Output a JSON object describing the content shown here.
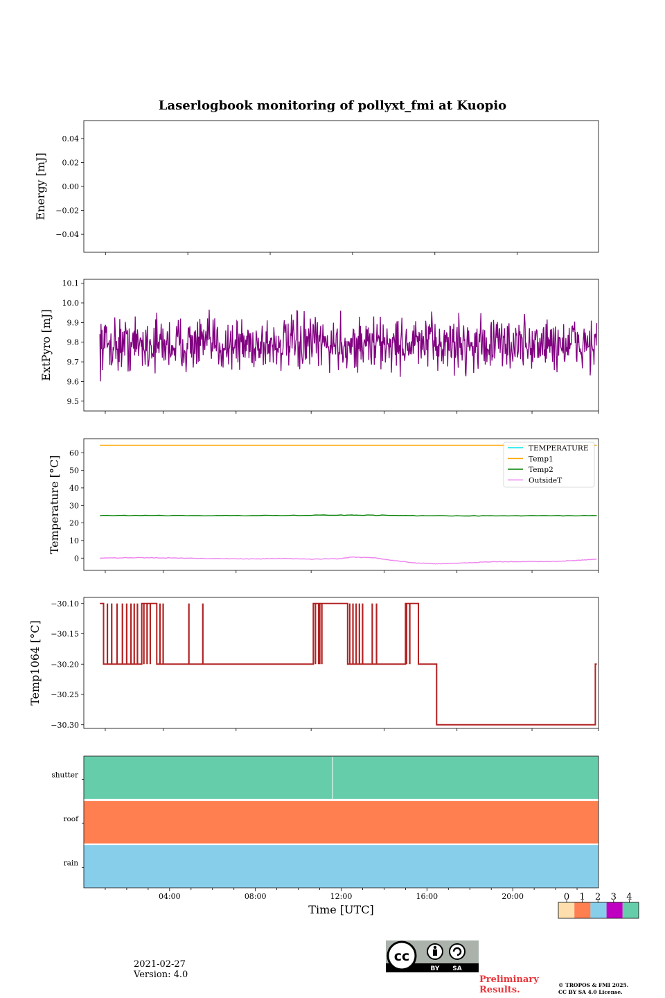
{
  "title": "Laserlogbook monitoring of pollyxt_fmi at Kuopio",
  "chart_data": [
    {
      "type": "line",
      "ylabel": "Energy [mJ]",
      "ylim": [
        -0.055,
        0.055
      ],
      "yticks": [
        0.04,
        0.02,
        0.0,
        -0.02,
        -0.04
      ],
      "ytick_labels": [
        "0.04",
        "0.02",
        "0.00",
        "−0.02",
        "−0.04"
      ],
      "series": []
    },
    {
      "type": "line",
      "ylabel": "ExtPyro [mJ]",
      "ylim": [
        9.45,
        10.12
      ],
      "yticks": [
        10.1,
        10.0,
        9.9,
        9.8,
        9.7,
        9.6,
        9.5
      ],
      "ytick_labels": [
        "10.1",
        "10.0",
        "9.9",
        "9.8",
        "9.7",
        "9.6",
        "9.5"
      ],
      "series": [
        {
          "name": "ExtPyro",
          "color": "#800080",
          "x_range_hours": [
            0.75,
            23.92
          ],
          "mean": 9.79,
          "spread": 0.09,
          "samples": 900
        }
      ]
    },
    {
      "type": "line",
      "ylabel": "Temperature [°C]",
      "ylim": [
        -7,
        68
      ],
      "yticks": [
        60,
        50,
        40,
        30,
        20,
        10,
        0
      ],
      "ytick_labels": [
        "60",
        "50",
        "40",
        "30",
        "20",
        "10",
        "0"
      ],
      "legend": [
        "TEMPERATURE",
        "Temp1",
        "Temp2",
        "OutsideT"
      ],
      "legend_position": "top-right",
      "series": [
        {
          "name": "TEMPERATURE",
          "color": "#00e5ee",
          "x": [],
          "y": []
        },
        {
          "name": "Temp1",
          "color": "#ffa500",
          "x": [
            0.75,
            23.92
          ],
          "y": [
            64.3,
            64.3
          ]
        },
        {
          "name": "Temp2",
          "color": "#008000",
          "x": [
            0.75,
            4,
            8,
            12,
            14,
            16,
            20,
            23.92
          ],
          "y": [
            24.3,
            24.2,
            24.2,
            24.5,
            24.4,
            24.1,
            24.0,
            24.2
          ]
        },
        {
          "name": "OutsideT",
          "color": "#ee82ee",
          "x": [
            0.75,
            2.5,
            4,
            6,
            8,
            9,
            10.5,
            12,
            12.5,
            13.5,
            14.5,
            15.5,
            16.5,
            17.5,
            19,
            20,
            22,
            23,
            23.92
          ],
          "y": [
            0.0,
            0.3,
            0.1,
            -0.3,
            -0.5,
            -0.2,
            -0.6,
            -0.3,
            0.6,
            0.2,
            -1.5,
            -2.8,
            -3.3,
            -2.9,
            -2.1,
            -2.0,
            -1.9,
            -1.3,
            -0.6
          ]
        }
      ]
    },
    {
      "type": "line",
      "ylabel": "Temp1064 [°C]",
      "ylim": [
        -30.306,
        -30.09
      ],
      "yticks": [
        -30.1,
        -30.15,
        -30.2,
        -30.25,
        -30.3
      ],
      "ytick_labels": [
        "−30.10",
        "−30.15",
        "−30.20",
        "−30.25",
        "−30.30"
      ],
      "series": [
        {
          "name": "Temp1064",
          "color": "#b22222",
          "levels": [
            -30.1,
            -30.2,
            -30.3
          ],
          "segments": [
            {
              "from": 0.75,
              "to": 0.92,
              "value": -30.1
            },
            {
              "from": 0.92,
              "to": 2.7,
              "value": -30.2
            },
            {
              "from": 2.7,
              "to": 3.4,
              "value": -30.1
            },
            {
              "from": 3.4,
              "to": 10.7,
              "value": -30.2
            },
            {
              "from": 10.7,
              "to": 12.3,
              "value": -30.1
            },
            {
              "from": 12.3,
              "to": 15.0,
              "value": -30.2
            },
            {
              "from": 15.0,
              "to": 15.6,
              "value": -30.1
            },
            {
              "from": 15.6,
              "to": 16.45,
              "value": -30.2
            },
            {
              "from": 16.45,
              "to": 23.85,
              "value": -30.3
            },
            {
              "from": 23.85,
              "to": 23.92,
              "value": -30.2
            }
          ],
          "spikes_to_upper": [
            1.1,
            1.3,
            1.55,
            1.8,
            2.0,
            2.2,
            2.35,
            2.5,
            3.55,
            3.7,
            4.9,
            5.55,
            11.0,
            12.4,
            12.55,
            12.7,
            12.85,
            13.0,
            13.45,
            13.65
          ],
          "spikes_to_lower": [
            2.8,
            2.95,
            3.1,
            10.8,
            10.95,
            11.1,
            15.05,
            15.2
          ]
        }
      ]
    },
    {
      "type": "heatmap",
      "rows": [
        "shutter",
        "roof",
        "rain"
      ],
      "row_values": [
        4,
        1,
        2
      ],
      "shutter_break_hour": 11.6
    }
  ],
  "shared_x": {
    "label": "Time [UTC]",
    "range_hours": [
      0,
      24
    ],
    "tick_hours": [
      4,
      8,
      12,
      16,
      20
    ],
    "tick_labels": [
      "04:00",
      "08:00",
      "12:00",
      "16:00",
      "20:00"
    ]
  },
  "colorbar": {
    "values": [
      "0",
      "1",
      "2",
      "3",
      "4"
    ],
    "colors": [
      "#ffdead",
      "#ff7f50",
      "#87ceeb",
      "#c000c0",
      "#66cdaa"
    ]
  },
  "footer": {
    "date": "2021-02-27",
    "version": "Version: 4.0",
    "cc_by": "BY",
    "cc_sa": "SA",
    "cc_logo": "cc",
    "preliminary": [
      "Preliminary",
      "Results."
    ],
    "copyright": [
      "© TROPOS & FMI 2025.",
      "CC BY SA 4.0 License."
    ]
  }
}
